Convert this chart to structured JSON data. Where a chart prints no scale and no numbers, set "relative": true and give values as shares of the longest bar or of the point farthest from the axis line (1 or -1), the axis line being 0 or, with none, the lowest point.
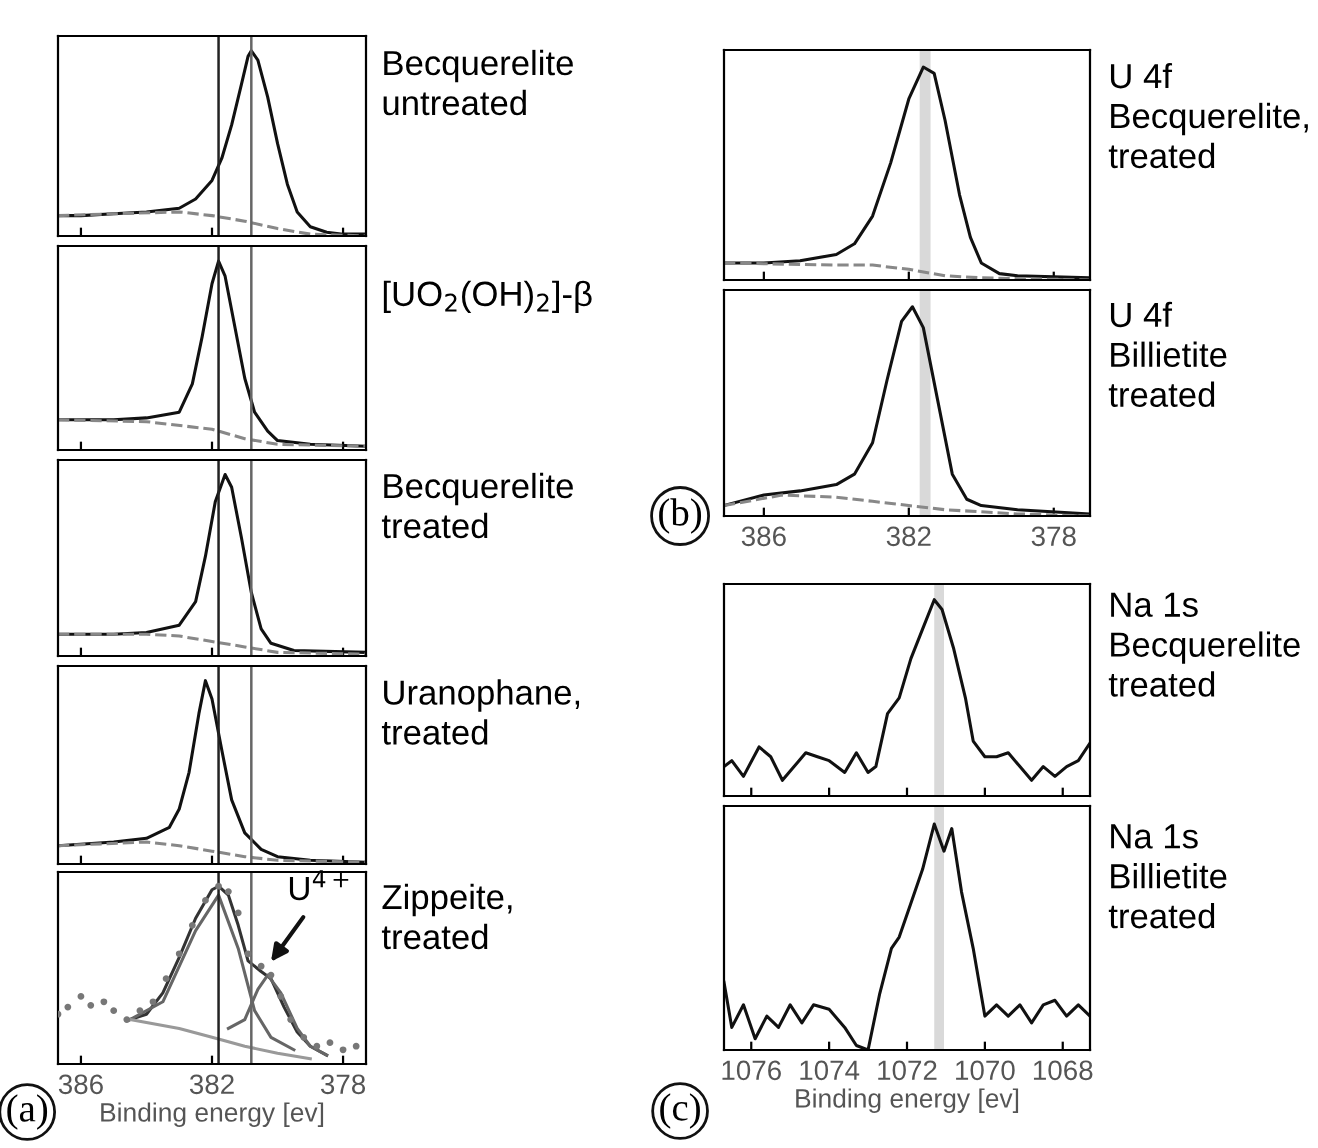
{
  "chart_data": [
    {
      "type": "line",
      "relative": true,
      "annotations": [
        "Becquerelite\nuntreated"
      ],
      "xlim": [
        386.7,
        377.3
      ],
      "xticks": [
        386,
        382,
        378
      ],
      "tick_labels": false,
      "ref_lines": [
        {
          "axis": "x",
          "value": 381.8,
          "color": "#222222"
        },
        {
          "axis": "x",
          "value": 380.8,
          "color": "#666666"
        }
      ],
      "series": [
        {
          "color": "#111111",
          "line_style": "solid",
          "x": [
            386.7,
            386,
            385,
            384,
            383,
            382.5,
            382,
            381.7,
            381.4,
            381.1,
            380.9,
            380.8,
            380.6,
            380.3,
            380,
            379.7,
            379.4,
            379,
            378.5,
            378,
            377.3
          ],
          "values": [
            0.11,
            0.11,
            0.12,
            0.13,
            0.15,
            0.2,
            0.3,
            0.42,
            0.6,
            0.82,
            0.97,
            1.0,
            0.95,
            0.75,
            0.5,
            0.28,
            0.13,
            0.05,
            0.02,
            0.01,
            0.01
          ]
        },
        {
          "color": "#888888",
          "line_style": "dashed",
          "x": [
            386.7,
            385,
            383,
            382,
            381,
            380,
            379,
            377.3
          ],
          "values": [
            0.11,
            0.12,
            0.13,
            0.11,
            0.08,
            0.04,
            0.01,
            0.0
          ]
        }
      ]
    },
    {
      "type": "line",
      "relative": true,
      "annotations": [
        "[UO$_{2}$(OH)$_{2}$]-β"
      ],
      "xlim": [
        386.7,
        377.3
      ],
      "xticks": [
        386,
        382,
        378
      ],
      "tick_labels": false,
      "ref_lines": [
        {
          "axis": "x",
          "value": 381.8,
          "color": "#222222"
        },
        {
          "axis": "x",
          "value": 380.8,
          "color": "#666666"
        }
      ],
      "series": [
        {
          "color": "#111111",
          "line_style": "solid",
          "x": [
            386.7,
            385,
            384,
            383,
            382.6,
            382.3,
            382,
            381.8,
            381.6,
            381.3,
            381,
            380.7,
            380.3,
            380,
            379,
            377.3
          ],
          "values": [
            0.16,
            0.16,
            0.17,
            0.2,
            0.35,
            0.6,
            0.88,
            1.0,
            0.92,
            0.65,
            0.38,
            0.2,
            0.1,
            0.05,
            0.03,
            0.02
          ]
        },
        {
          "color": "#888888",
          "line_style": "dashed",
          "x": [
            386.7,
            384,
            382,
            381,
            380,
            377.3
          ],
          "values": [
            0.16,
            0.15,
            0.11,
            0.06,
            0.03,
            0.02
          ]
        }
      ]
    },
    {
      "type": "line",
      "relative": true,
      "annotations": [
        "Becquerelite\ntreated"
      ],
      "xlim": [
        386.7,
        377.3
      ],
      "xticks": [
        386,
        382,
        378
      ],
      "tick_labels": false,
      "ref_lines": [
        {
          "axis": "x",
          "value": 381.8,
          "color": "#222222"
        },
        {
          "axis": "x",
          "value": 380.8,
          "color": "#666666"
        }
      ],
      "series": [
        {
          "color": "#111111",
          "line_style": "solid",
          "x": [
            386.7,
            385,
            384,
            383,
            382.5,
            382.2,
            381.9,
            381.6,
            381.4,
            381.1,
            380.8,
            380.5,
            380.2,
            379.5,
            377.3
          ],
          "values": [
            0.12,
            0.12,
            0.13,
            0.17,
            0.3,
            0.55,
            0.85,
            1.0,
            0.93,
            0.65,
            0.35,
            0.15,
            0.07,
            0.03,
            0.02
          ]
        },
        {
          "color": "#888888",
          "line_style": "dashed",
          "x": [
            386.7,
            384,
            383,
            382,
            381,
            380,
            377.3
          ],
          "values": [
            0.12,
            0.12,
            0.11,
            0.08,
            0.05,
            0.02,
            0.01
          ]
        }
      ]
    },
    {
      "type": "line",
      "relative": true,
      "annotations": [
        "Uranophane,\ntreated"
      ],
      "xlim": [
        386.7,
        377.3
      ],
      "xticks": [
        386,
        382,
        378
      ],
      "tick_labels": false,
      "ref_lines": [
        {
          "axis": "x",
          "value": 381.8,
          "color": "#222222"
        },
        {
          "axis": "x",
          "value": 380.8,
          "color": "#666666"
        }
      ],
      "series": [
        {
          "color": "#111111",
          "line_style": "solid",
          "x": [
            386.7,
            385,
            384,
            383.3,
            383,
            382.7,
            382.4,
            382.2,
            382,
            381.7,
            381.4,
            381,
            380.5,
            380,
            379,
            377.3
          ],
          "values": [
            0.1,
            0.12,
            0.14,
            0.2,
            0.3,
            0.5,
            0.82,
            1.0,
            0.9,
            0.62,
            0.35,
            0.17,
            0.08,
            0.04,
            0.02,
            0.01
          ]
        },
        {
          "color": "#888888",
          "line_style": "dashed",
          "x": [
            386.7,
            384,
            383,
            382,
            381,
            380,
            377.3
          ],
          "values": [
            0.1,
            0.12,
            0.1,
            0.07,
            0.04,
            0.02,
            0.01
          ]
        }
      ]
    },
    {
      "type": "line",
      "relative": true,
      "xlim": [
        386.7,
        377.3
      ],
      "xticks": [
        386,
        382,
        378
      ],
      "tick_labels": "x",
      "xlabel": "Binding energy [ev]",
      "ref_lines": [
        {
          "axis": "x",
          "value": 381.8,
          "color": "#222222"
        },
        {
          "axis": "x",
          "value": 380.8,
          "color": "#666666"
        }
      ],
      "annotations": [
        {
          "text": "U$^{4+}$",
          "x": 380.3,
          "y": 0.55
        },
        "Zippeite,\ntreated",
        "(a)"
      ],
      "series": [
        {
          "type": "scatter",
          "color": "#777777",
          "x": [
            386.7,
            386.4,
            386,
            385.7,
            385.3,
            385,
            384.6,
            384.2,
            383.8,
            383.4,
            383,
            382.6,
            382.2,
            381.8,
            381.5,
            381.2,
            380.9,
            380.5,
            380.2,
            379.9,
            379.6,
            379.2,
            378.8,
            378.4,
            378,
            377.6
          ],
          "values": [
            0.28,
            0.32,
            0.38,
            0.33,
            0.35,
            0.3,
            0.25,
            0.3,
            0.35,
            0.48,
            0.62,
            0.78,
            0.92,
            1.0,
            0.97,
            0.85,
            0.62,
            0.55,
            0.5,
            0.38,
            0.25,
            0.15,
            0.1,
            0.12,
            0.08,
            0.1
          ]
        },
        {
          "color": "#333333",
          "line_style": "solid",
          "x": [
            384.5,
            384,
            383.5,
            383,
            382.5,
            382,
            381.8,
            381.5,
            381.2,
            380.9,
            380.5,
            380.2,
            379.8,
            379.4,
            379,
            378.5
          ],
          "values": [
            0.25,
            0.28,
            0.4,
            0.6,
            0.82,
            0.98,
            1.0,
            0.95,
            0.78,
            0.58,
            0.52,
            0.48,
            0.32,
            0.18,
            0.1,
            0.05
          ]
        },
        {
          "color": "#666666",
          "line_style": "solid",
          "x": [
            384.5,
            383.5,
            382.5,
            381.8,
            381.2,
            380.7,
            380.2,
            379.5
          ],
          "values": [
            0.25,
            0.35,
            0.75,
            0.95,
            0.65,
            0.3,
            0.15,
            0.08
          ]
        },
        {
          "color": "#666666",
          "line_style": "solid",
          "x": [
            381.5,
            381,
            380.6,
            380.3,
            379.9,
            379.4,
            379,
            378.5
          ],
          "values": [
            0.2,
            0.25,
            0.42,
            0.5,
            0.4,
            0.2,
            0.1,
            0.05
          ]
        },
        {
          "color": "#999999",
          "line_style": "solid",
          "x": [
            384.5,
            383,
            382,
            381,
            380,
            379
          ],
          "values": [
            0.25,
            0.2,
            0.15,
            0.1,
            0.06,
            0.03
          ]
        }
      ]
    },
    {
      "type": "line",
      "relative": true,
      "annotations": [
        "U 4f\nBecquerelite,\ntreated"
      ],
      "xlim": [
        387.1,
        377.0
      ],
      "xticks": [
        386,
        382,
        378
      ],
      "tick_labels": false,
      "bands": [
        {
          "axis": "x",
          "from": 381.7,
          "to": 381.4,
          "color": "#d9d9d9"
        }
      ],
      "series": [
        {
          "color": "#111111",
          "line_style": "solid",
          "x": [
            387.1,
            386,
            385,
            384,
            383.5,
            383,
            382.5,
            382,
            381.6,
            381.3,
            381,
            380.6,
            380.3,
            380,
            379.5,
            379,
            377
          ],
          "values": [
            0.08,
            0.08,
            0.09,
            0.12,
            0.17,
            0.3,
            0.55,
            0.85,
            1.0,
            0.97,
            0.75,
            0.4,
            0.2,
            0.08,
            0.03,
            0.02,
            0.01
          ]
        },
        {
          "color": "#888888",
          "line_style": "dashed",
          "x": [
            387.1,
            384,
            383,
            382,
            381,
            380,
            377
          ],
          "values": [
            0.08,
            0.07,
            0.07,
            0.05,
            0.02,
            0.01,
            0.0
          ]
        }
      ]
    },
    {
      "type": "line",
      "relative": true,
      "xlim": [
        387.1,
        377.0
      ],
      "xticks": [
        386,
        382,
        378
      ],
      "tick_labels": "x",
      "bands": [
        {
          "axis": "x",
          "from": 381.7,
          "to": 381.4,
          "color": "#d9d9d9"
        }
      ],
      "annotations": [
        "U 4f\nBillietite\ntreated",
        "(b)"
      ],
      "series": [
        {
          "color": "#111111",
          "line_style": "solid",
          "x": [
            387.1,
            386,
            385,
            384,
            383.5,
            383,
            382.6,
            382.2,
            381.9,
            381.6,
            381.2,
            380.8,
            380.4,
            380,
            379,
            377
          ],
          "values": [
            0.05,
            0.1,
            0.12,
            0.15,
            0.2,
            0.35,
            0.65,
            0.93,
            1.0,
            0.9,
            0.55,
            0.2,
            0.08,
            0.05,
            0.03,
            0.01
          ]
        },
        {
          "color": "#888888",
          "line_style": "dashed",
          "x": [
            387.1,
            385.5,
            384,
            383,
            382,
            381,
            379,
            377
          ],
          "values": [
            0.05,
            0.1,
            0.09,
            0.07,
            0.05,
            0.03,
            0.01,
            0.0
          ]
        }
      ]
    },
    {
      "type": "line",
      "relative": true,
      "annotations": [
        "Na 1s\nBecquerelite\ntreated"
      ],
      "xlim": [
        1076.7,
        1067.3
      ],
      "xticks": [
        1076,
        1074,
        1072,
        1070,
        1068
      ],
      "tick_labels": false,
      "bands": [
        {
          "axis": "x",
          "from": 1071.3,
          "to": 1071.05,
          "color": "#d9d9d9"
        }
      ],
      "series": [
        {
          "color": "#111111",
          "line_style": "solid",
          "x": [
            1076.7,
            1076.5,
            1076.2,
            1075.8,
            1075.5,
            1075.2,
            1074.9,
            1074.6,
            1074.3,
            1074,
            1073.6,
            1073.3,
            1073,
            1072.8,
            1072.5,
            1072.2,
            1071.9,
            1071.6,
            1071.3,
            1071.1,
            1070.8,
            1070.5,
            1070.3,
            1070,
            1069.7,
            1069.4,
            1069.1,
            1068.8,
            1068.5,
            1068.2,
            1067.9,
            1067.6,
            1067.3
          ],
          "values": [
            0.15,
            0.18,
            0.1,
            0.25,
            0.2,
            0.08,
            0.15,
            0.22,
            0.2,
            0.18,
            0.12,
            0.22,
            0.12,
            0.15,
            0.42,
            0.5,
            0.7,
            0.85,
            1.0,
            0.95,
            0.75,
            0.5,
            0.28,
            0.2,
            0.2,
            0.22,
            0.15,
            0.08,
            0.15,
            0.1,
            0.15,
            0.18,
            0.27
          ]
        }
      ]
    },
    {
      "type": "line",
      "relative": true,
      "xlim": [
        1076.7,
        1067.3
      ],
      "xticks": [
        1076,
        1074,
        1072,
        1070,
        1068
      ],
      "tick_labels": "x",
      "xlabel": "Binding energy [ev]",
      "bands": [
        {
          "axis": "x",
          "from": 1071.3,
          "to": 1071.05,
          "color": "#d9d9d9"
        }
      ],
      "annotations": [
        "Na 1s\nBillietite\ntreated",
        "(c)"
      ],
      "series": [
        {
          "color": "#111111",
          "line_style": "solid",
          "x": [
            1076.7,
            1076.5,
            1076.2,
            1075.9,
            1075.6,
            1075.3,
            1075,
            1074.7,
            1074.4,
            1074,
            1073.6,
            1073.3,
            1073,
            1072.7,
            1072.4,
            1072.2,
            1071.9,
            1071.6,
            1071.3,
            1071.05,
            1070.85,
            1070.6,
            1070.3,
            1070,
            1069.7,
            1069.4,
            1069.1,
            1068.8,
            1068.5,
            1068.2,
            1067.9,
            1067.6,
            1067.3
          ],
          "values": [
            0.3,
            0.1,
            0.2,
            0.05,
            0.15,
            0.1,
            0.2,
            0.12,
            0.2,
            0.18,
            0.1,
            0.02,
            0.0,
            0.25,
            0.45,
            0.5,
            0.65,
            0.8,
            1.0,
            0.88,
            0.98,
            0.7,
            0.45,
            0.15,
            0.2,
            0.15,
            0.2,
            0.12,
            0.2,
            0.22,
            0.15,
            0.2,
            0.15
          ]
        }
      ]
    }
  ]
}
